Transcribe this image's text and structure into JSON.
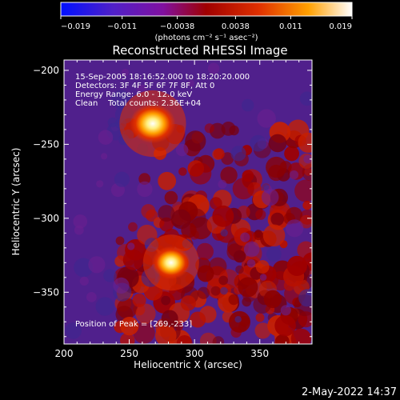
{
  "chart_data": {
    "type": "heatmap",
    "title": "Reconstructed RHESSI Image",
    "xlabel": "Heliocentric X (arcsec)",
    "ylabel": "Heliocentric Y (arcsec)",
    "xlim": [
      200,
      390
    ],
    "ylim": [
      -385,
      -193
    ],
    "x_ticks": [
      200,
      250,
      300,
      350
    ],
    "x_tick_labels": [
      "200",
      "250",
      "300",
      "350"
    ],
    "y_ticks": [
      -200,
      -250,
      -300,
      -350
    ],
    "y_tick_labels": [
      "−200",
      "−250",
      "−300",
      "−350"
    ],
    "colorbar": {
      "range": [
        -0.019,
        0.019
      ],
      "ticks": [
        -0.019,
        -0.011,
        -0.0038,
        0.0038,
        0.011,
        0.019
      ],
      "tick_labels": [
        "−0.019",
        "−0.011",
        "−0.0038",
        "0.0038",
        "0.011",
        "0.019"
      ],
      "units_label": "(photons cm⁻² s⁻¹ asec⁻²)",
      "colors": [
        "#0010ff",
        "#5020c8",
        "#8010a0",
        "#a00000",
        "#e04000",
        "#ffa000",
        "#ffffff"
      ]
    },
    "annotations": [
      "15-Sep-2005 18:16:52.000 to 18:20:20.000",
      "Detectors: 3F 4F 5F 6F 7F 8F, Att 0",
      "Energy Range: 6.0 - 12.0 keV",
      "Clean    Total counts: 2.36E+04",
      "Position of Peak = [269,-233]"
    ],
    "sources": [
      {
        "x": 268,
        "y": -236,
        "peak": 0.019
      },
      {
        "x": 282,
        "y": -330,
        "peak": 0.016
      }
    ],
    "background_colors": {
      "positive": "#a00000",
      "negative": "#50208c"
    }
  },
  "footer": {
    "date_label": "2-May-2022 14:37"
  }
}
